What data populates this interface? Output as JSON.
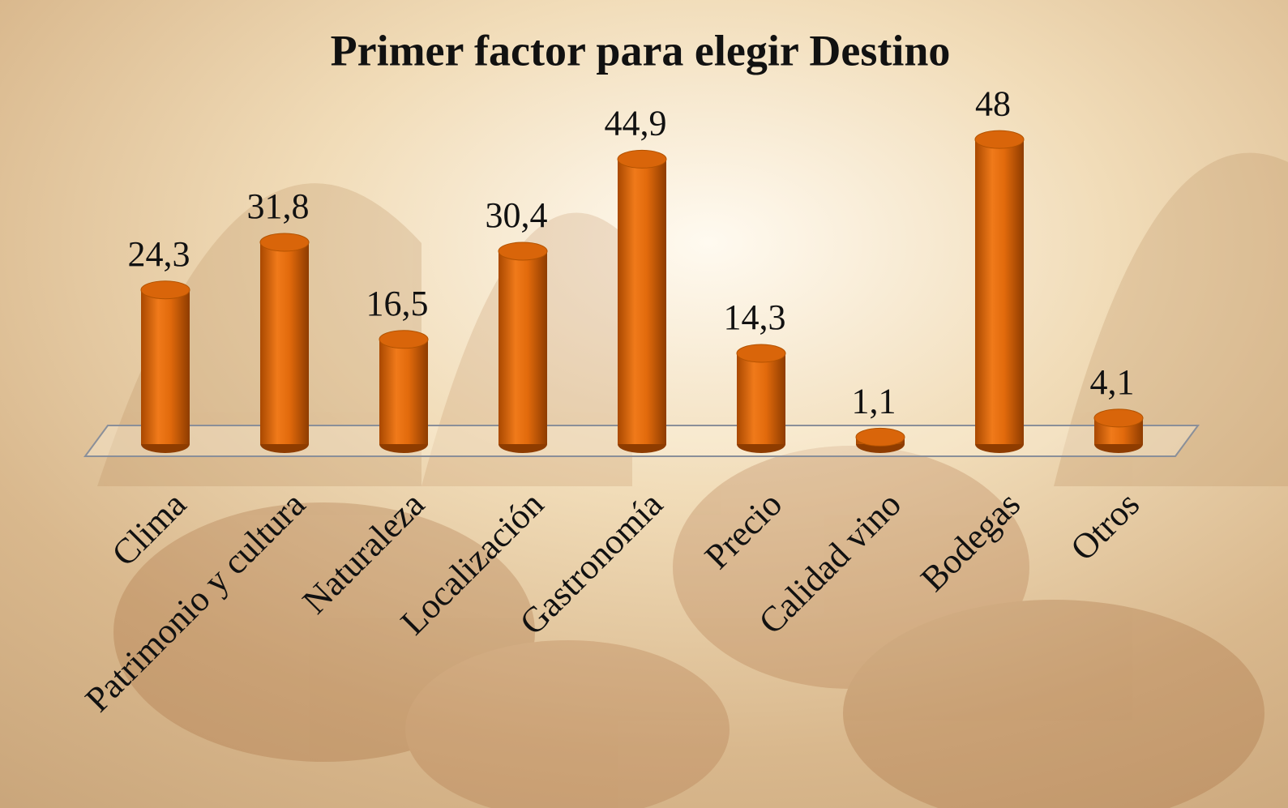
{
  "chart_data": {
    "type": "bar3d",
    "title": "Primer factor para elegir Destino",
    "categories": [
      "Clima",
      "Patrimonio y cultura",
      "Naturaleza",
      "Localización",
      "Gastronomía",
      "Precio",
      "Calidad vino",
      "Bodegas",
      "Otros"
    ],
    "values": [
      24.3,
      31.8,
      16.5,
      30.4,
      44.9,
      14.3,
      1.1,
      48,
      4.1
    ],
    "value_labels": [
      "24,3",
      "31,8",
      "16,5",
      "30,4",
      "44,9",
      "14,3",
      "1,1",
      "48",
      "4,1"
    ],
    "color": "#d9650a"
  }
}
